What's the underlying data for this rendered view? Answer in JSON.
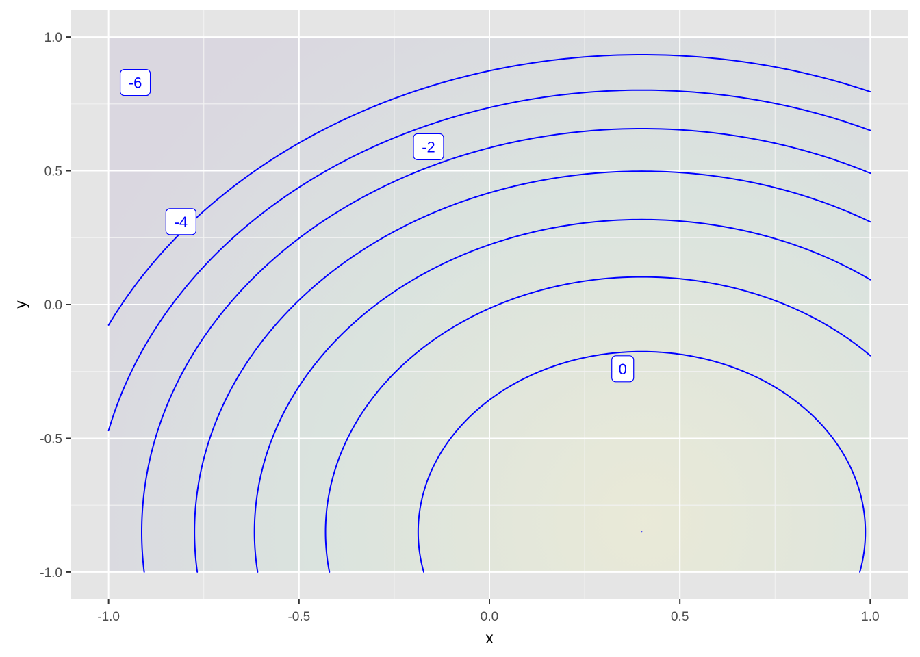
{
  "chart_data": {
    "type": "contour",
    "title": "",
    "xlabel": "x",
    "ylabel": "y",
    "xlim": [
      -1.1,
      1.1
    ],
    "ylim": [
      -1.1,
      1.1
    ],
    "x_ticks": [
      -1.0,
      -0.5,
      0.0,
      0.5,
      1.0
    ],
    "x_tick_labels": [
      "-1.0",
      "-0.5",
      "0.0",
      "0.5",
      "1.0"
    ],
    "y_ticks": [
      -1.0,
      -0.5,
      0.0,
      0.5,
      1.0
    ],
    "y_tick_labels": [
      "-1.0",
      "-0.5",
      "0.0",
      "0.5",
      "1.0"
    ],
    "grid": true,
    "legend": "none",
    "colors": {
      "panel": "#e5e5e5",
      "grid_major": "#ffffff",
      "contour_line": "#0000ff",
      "fill_low": "#d7d2df",
      "fill_mid": "#d6e2dc",
      "fill_high": "#ebebd3"
    },
    "contour_levels": [
      -6,
      -5,
      -4,
      -3,
      -2,
      -1,
      0,
      1
    ],
    "contour_labels": [
      {
        "text": "-6",
        "x": -0.93,
        "y": 0.83
      },
      {
        "text": "-4",
        "x": -0.81,
        "y": 0.31
      },
      {
        "text": "-2",
        "x": -0.16,
        "y": 0.59
      },
      {
        "text": "0",
        "x": 0.35,
        "y": -0.24
      }
    ]
  }
}
